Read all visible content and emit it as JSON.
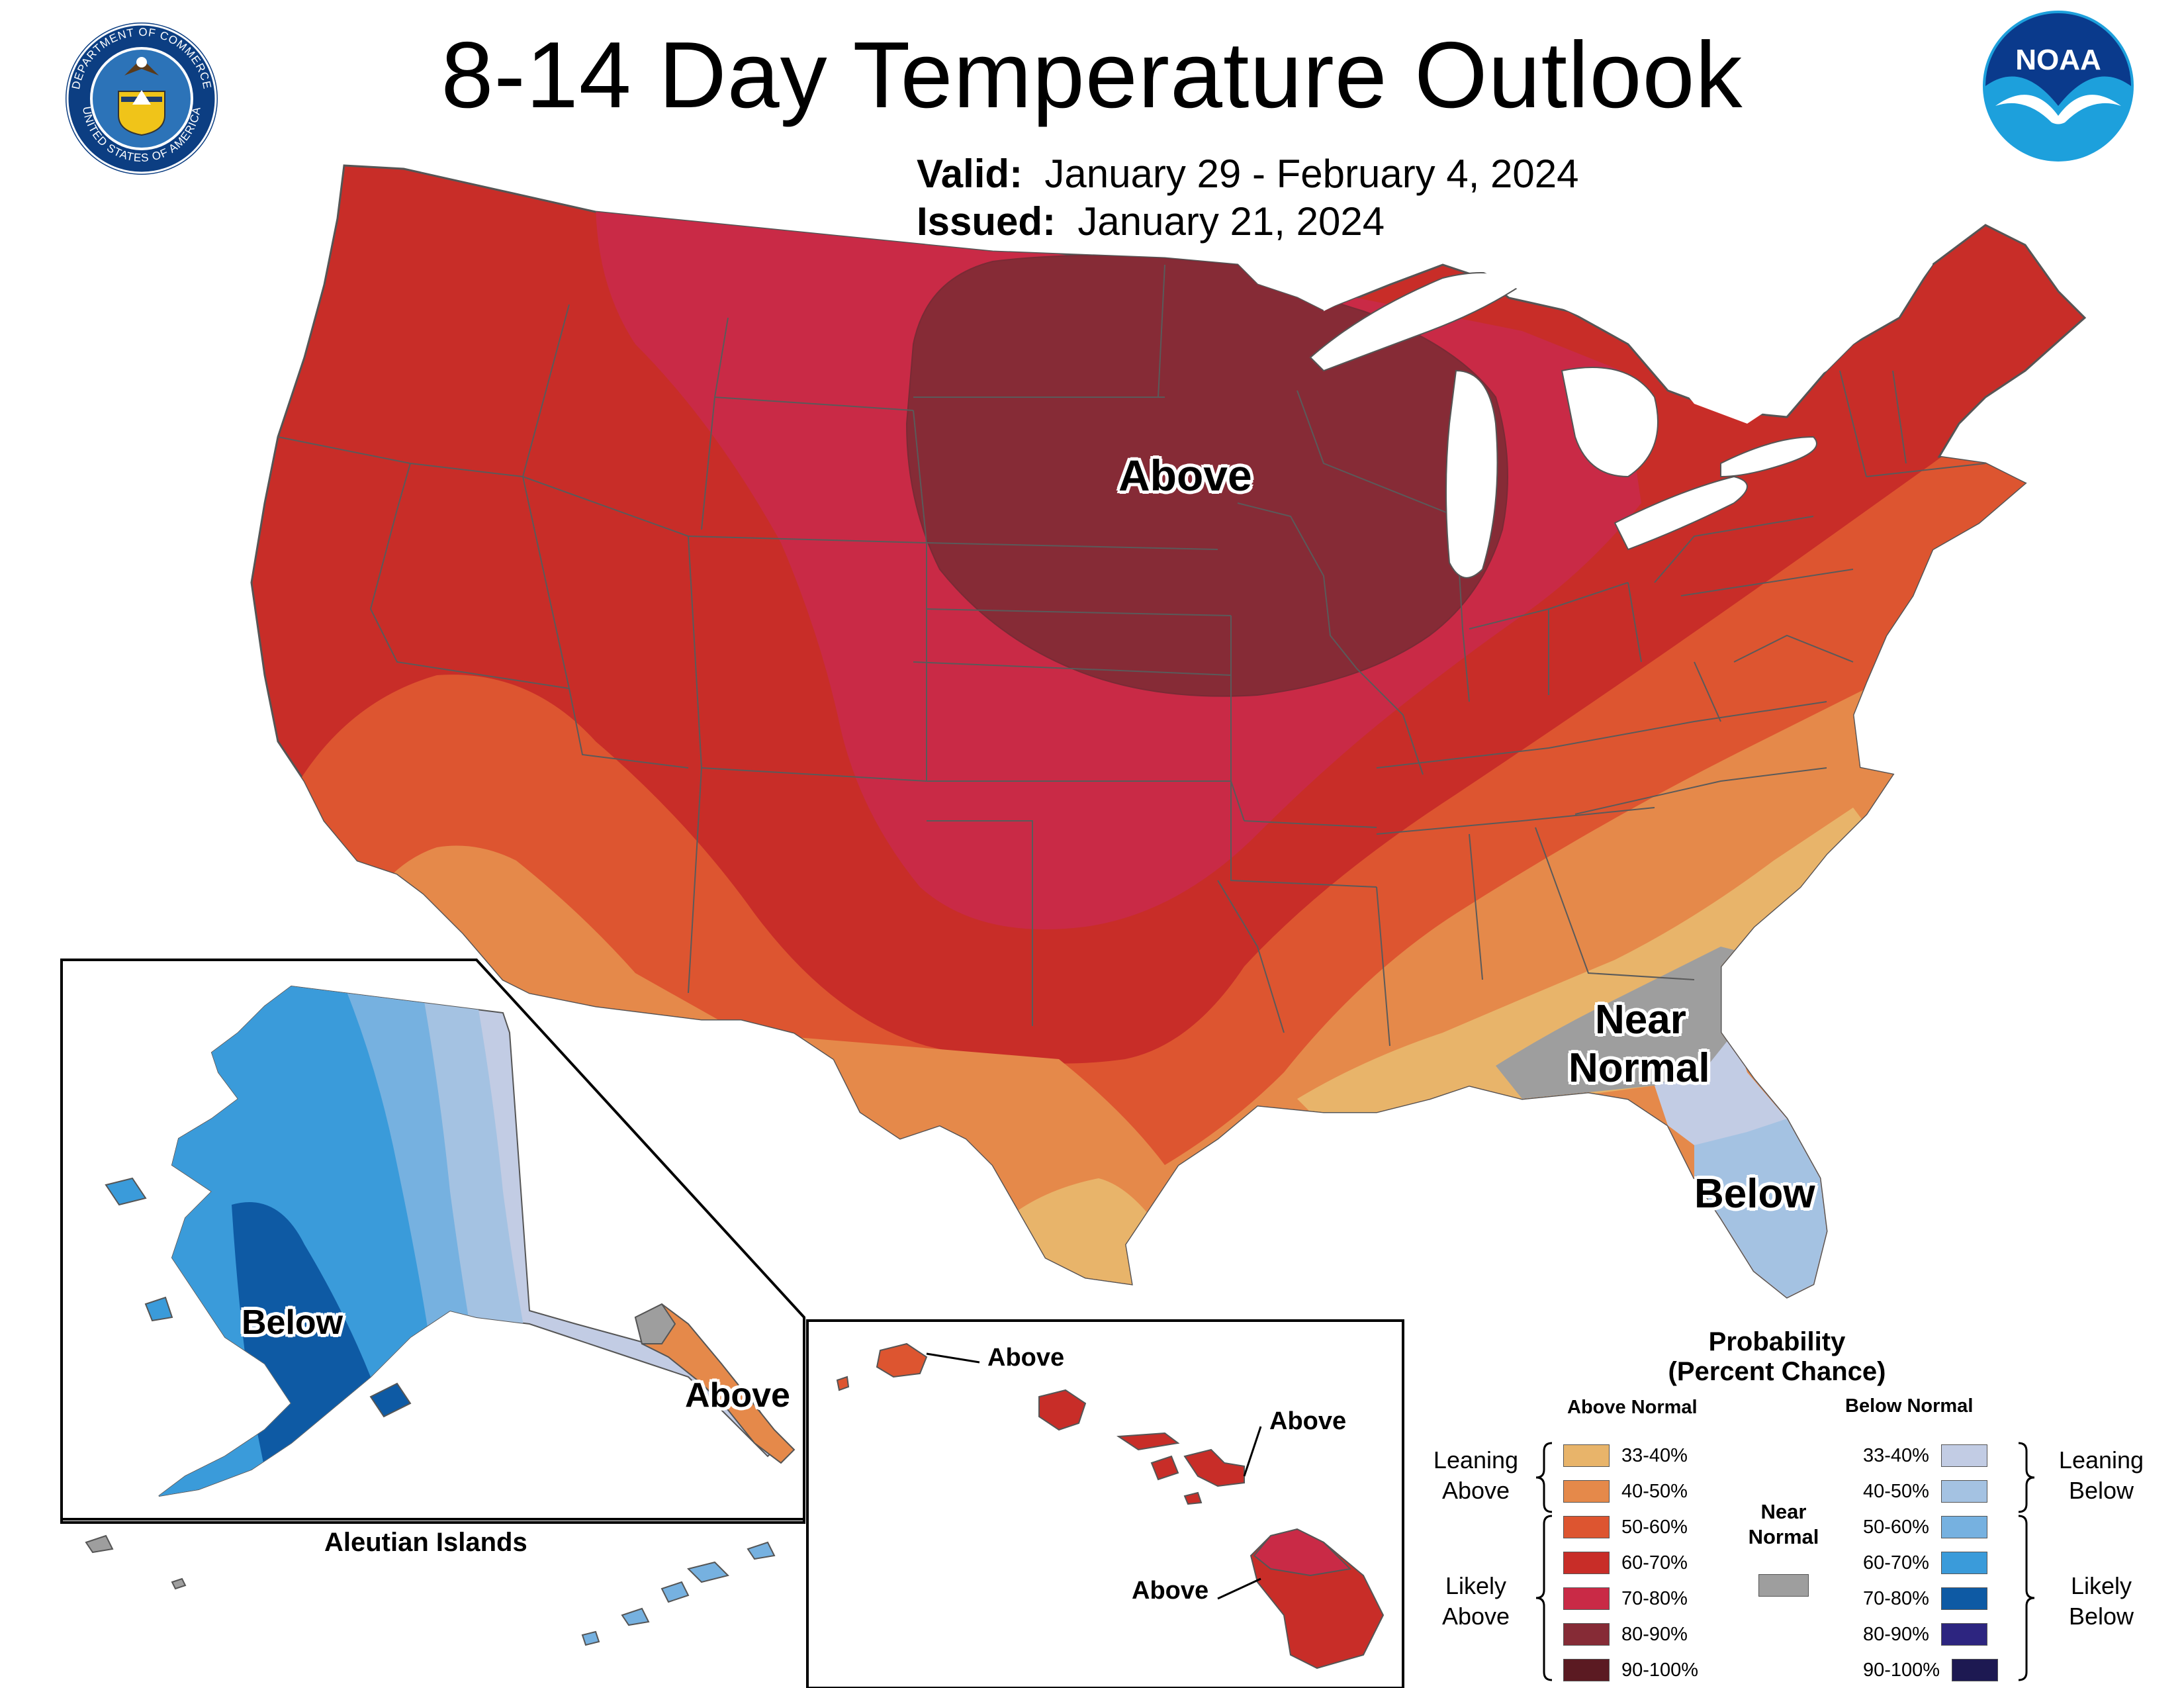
{
  "header": {
    "title": "8-14 Day Temperature Outlook",
    "valid_label": "Valid:",
    "valid_value": "January 29 - February 4, 2024",
    "issued_label": "Issued:",
    "issued_value": "January 21, 2024"
  },
  "logos": {
    "doc_seal_text_top": "DEPARTMENT OF COMMERCE",
    "doc_seal_text_bottom": "UNITED STATES OF AMERICA",
    "noaa": "NOAA"
  },
  "regions": {
    "conus_above": "Above",
    "conus_near_normal_1": "Near",
    "conus_near_normal_2": "Normal",
    "conus_below": "Below",
    "alaska_below": "Below",
    "alaska_above": "Above",
    "aleutian_title": "Aleutian Islands",
    "hawaii_above_kauai": "Above",
    "hawaii_above_maui": "Above",
    "hawaii_above_big": "Above"
  },
  "legend": {
    "title_line1": "Probability",
    "title_line2": "(Percent Chance)",
    "above_header": "Above Normal",
    "below_header": "Below Normal",
    "near_normal_1": "Near",
    "near_normal_2": "Normal",
    "leaning_above_1": "Leaning",
    "leaning_above_2": "Above",
    "likely_above_1": "Likely",
    "likely_above_2": "Above",
    "leaning_below_1": "Leaning",
    "leaning_below_2": "Below",
    "likely_below_1": "Likely",
    "likely_below_2": "Below",
    "above_ranges": [
      "33-40%",
      "40-50%",
      "50-60%",
      "60-70%",
      "70-80%",
      "80-90%",
      "90-100%"
    ],
    "below_ranges": [
      "33-40%",
      "40-50%",
      "50-60%",
      "60-70%",
      "70-80%",
      "80-90%",
      "90-100%"
    ],
    "above_colors": [
      "#E8B46A",
      "#E5894A",
      "#DD5530",
      "#C82D28",
      "#C92A46",
      "#862B36",
      "#5B1A22"
    ],
    "below_colors": [
      "#C2CCE4",
      "#A4C2E2",
      "#76B1E0",
      "#3A9BDA",
      "#0E5AA4",
      "#2D2580",
      "#1D1952"
    ],
    "near_color": "#9E9E9E"
  }
}
